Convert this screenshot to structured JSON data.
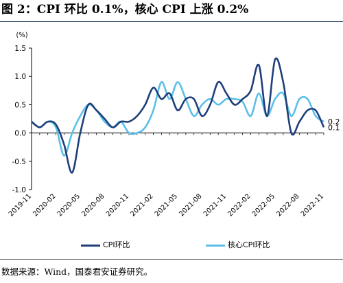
{
  "header": {
    "title": "图 2：CPI 环比 0.1%，核心 CPI 上涨 0.2%"
  },
  "footer": {
    "source": "数据来源：Wind，国泰君安证券研究。"
  },
  "chart_data": {
    "type": "line",
    "unit_label": "(%)",
    "ylim": [
      -1.0,
      1.5
    ],
    "yticks": [
      "1.5",
      "1.0",
      "0.5",
      "0.0",
      "-0.5",
      "-1.0"
    ],
    "x_tick_labels": [
      "2019-11",
      "2020-02",
      "2020-05",
      "2020-08",
      "2020-11",
      "2021-02",
      "2021-05",
      "2021-08",
      "2021-11",
      "2022-02",
      "2022-05",
      "2022-08",
      "2022-11"
    ],
    "x": [
      "2019-11",
      "2019-12",
      "2020-01",
      "2020-02",
      "2020-03",
      "2020-04",
      "2020-05",
      "2020-06",
      "2020-07",
      "2020-08",
      "2020-09",
      "2020-10",
      "2020-11",
      "2020-12",
      "2021-01",
      "2021-02",
      "2021-03",
      "2021-04",
      "2021-05",
      "2021-06",
      "2021-07",
      "2021-08",
      "2021-09",
      "2021-10",
      "2021-11",
      "2021-12",
      "2022-01",
      "2022-02",
      "2022-03",
      "2022-04",
      "2022-05",
      "2022-06",
      "2022-07",
      "2022-08",
      "2022-09",
      "2022-10",
      "2022-11"
    ],
    "series": [
      {
        "name": "CPI环比",
        "color": "#1f3f7a",
        "values": [
          0.2,
          0.1,
          0.2,
          0.15,
          -0.2,
          -0.7,
          0.0,
          0.5,
          0.4,
          0.25,
          0.1,
          0.2,
          0.2,
          0.3,
          0.5,
          0.8,
          0.6,
          0.7,
          0.4,
          0.6,
          0.6,
          0.3,
          0.5,
          0.9,
          0.7,
          0.5,
          0.6,
          0.75,
          1.2,
          0.3,
          1.3,
          0.9,
          0.0,
          0.2,
          0.4,
          0.4,
          0.1
        ]
      },
      {
        "name": "核心CPI环比",
        "color": "#5bbfe8",
        "values": [
          0.2,
          0.1,
          0.2,
          0.1,
          -0.4,
          0.0,
          0.3,
          0.5,
          0.4,
          0.2,
          0.1,
          0.2,
          0.0,
          0.0,
          0.1,
          0.4,
          0.9,
          0.6,
          0.9,
          0.6,
          0.3,
          0.5,
          0.6,
          0.5,
          0.6,
          0.6,
          0.55,
          0.3,
          0.7,
          0.3,
          0.6,
          0.7,
          0.3,
          0.6,
          0.6,
          0.3,
          0.2
        ]
      }
    ],
    "end_labels": [
      "0.2",
      "0.1"
    ]
  }
}
